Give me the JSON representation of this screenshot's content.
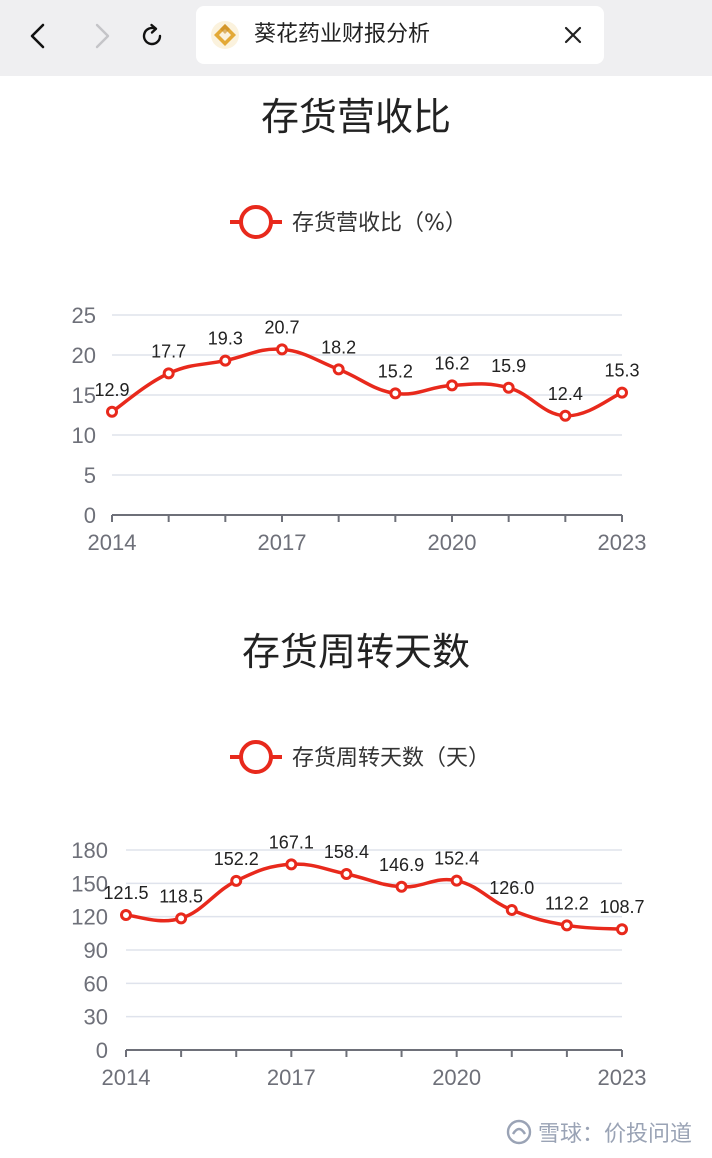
{
  "browser": {
    "back_icon": "chevron-left-icon",
    "forward_icon": "chevron-right-icon",
    "reload_icon": "reload-icon",
    "close_icon": "close-icon",
    "tab_title": "葵花药业财报分析"
  },
  "watermark": {
    "text": "雪球：价投问道"
  },
  "colors": {
    "line": "#e8291c",
    "grid": "#dfe3ec",
    "axis": "#6e7079"
  },
  "chart_data": [
    {
      "type": "line",
      "title": "存货营收比",
      "legend": "存货营收比（%）",
      "x": [
        "2014",
        "2015",
        "2016",
        "2017",
        "2018",
        "2019",
        "2020",
        "2021",
        "2022",
        "2023"
      ],
      "x_tick_labels": [
        "2014",
        "2017",
        "2020",
        "2023"
      ],
      "values": [
        12.9,
        17.7,
        19.3,
        20.7,
        18.2,
        15.2,
        16.2,
        15.9,
        12.4,
        15.3
      ],
      "value_labels": [
        "12.9",
        "17.7",
        "19.3",
        "20.7",
        "18.2",
        "15.2",
        "16.2",
        "15.9",
        "12.4",
        "15.3"
      ],
      "y_ticks": [
        0,
        5,
        10,
        15,
        20,
        25
      ],
      "ylim": [
        0,
        25
      ],
      "grid": true,
      "legend_position": "top-center"
    },
    {
      "type": "line",
      "title": "存货周转天数",
      "legend": "存货周转天数（天）",
      "x": [
        "2014",
        "2015",
        "2016",
        "2017",
        "2018",
        "2019",
        "2020",
        "2021",
        "2022",
        "2023"
      ],
      "x_tick_labels": [
        "2014",
        "2017",
        "2020",
        "2023"
      ],
      "values": [
        121.5,
        118.5,
        152.2,
        167.1,
        158.4,
        146.9,
        152.4,
        126.0,
        112.2,
        108.7
      ],
      "value_labels": [
        "121.5",
        "118.5",
        "152.2",
        "167.1",
        "158.4",
        "146.9",
        "152.4",
        "126.0",
        "112.2",
        "108.7"
      ],
      "y_ticks": [
        0,
        30,
        60,
        90,
        120,
        150,
        180
      ],
      "ylim": [
        0,
        180
      ],
      "grid": true,
      "legend_position": "top-center"
    }
  ]
}
